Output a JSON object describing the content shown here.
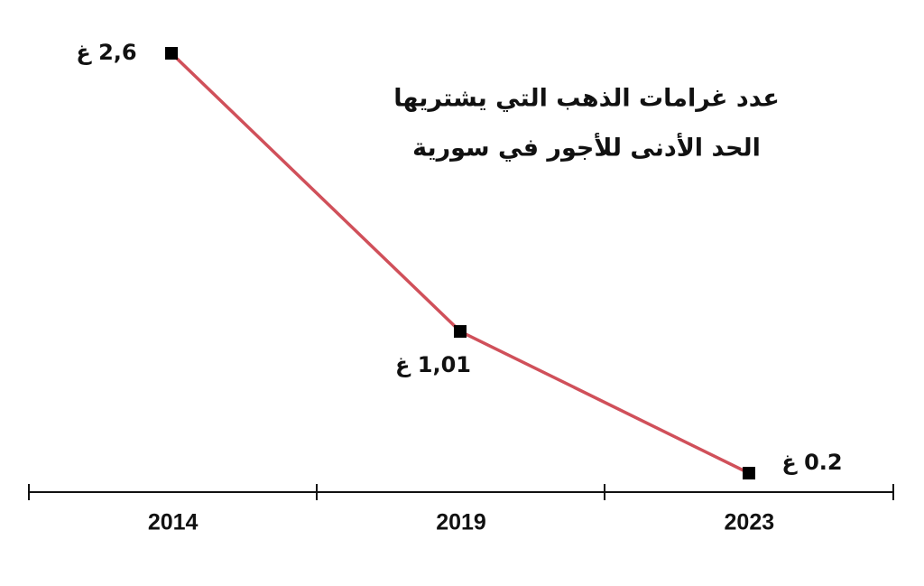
{
  "chart_data": {
    "type": "line",
    "title": "عدد غرامات الذهب التي يشتريها",
    "subtitle": "الحد الأدنى للأجور في سورية",
    "categories": [
      "2014",
      "2019",
      "2023"
    ],
    "series": [
      {
        "color": "#d0505a",
        "values": [
          2.6,
          1.01,
          0.2
        ],
        "value_labels": [
          "2,6 غ",
          "1,01 غ",
          "0.2 غ"
        ]
      }
    ],
    "marker_color": "#000000"
  }
}
